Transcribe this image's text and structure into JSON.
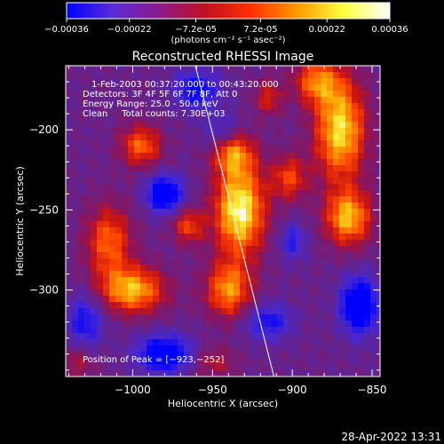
{
  "colorbar": {
    "ticks": [
      "-0.00036",
      "-0.00022",
      "-7.2e-05",
      "7.2e-05",
      "0.00022",
      "0.00036"
    ],
    "unit_label": "(photons cm⁻² s⁻¹ asec⁻²)",
    "colors": [
      "#0000ff",
      "#5a2cd6",
      "#8a1a8a",
      "#c01020",
      "#ff3000",
      "#ff9a00",
      "#ffff40",
      "#ffffff"
    ]
  },
  "chart_data": {
    "type": "heatmap",
    "title": "Reconstructed RHESSI Image",
    "xlabel": "Heliocentric X (arcsec)",
    "ylabel": "Heliocentric Y (arcsec)",
    "xlim": [
      -1042,
      -845
    ],
    "ylim": [
      -354,
      -160
    ],
    "xticks": [
      -1000,
      -950,
      -900,
      -850
    ],
    "yticks": [
      -200,
      -250,
      -300
    ],
    "xtick_labels": [
      "−1000",
      "−950",
      "−900",
      "−850"
    ],
    "ytick_labels": [
      "−200",
      "−250",
      "−300"
    ],
    "zlim": [
      -0.00036,
      0.00036
    ],
    "info_lines": [
      "1-Feb-2003 00:37:20.000 to 00:43:20.000",
      "Detectors: 3F 4F 5F 6F 7F 8F, Att 0",
      "Energy Range: 25.0 - 50.0 keV",
      "Clean     Total counts: 7.30E+03"
    ],
    "peak_label": "Position of Peak = [−923,−252]",
    "peak": [
      -923,
      -252
    ],
    "limb_line": [
      [
        -961,
        -159
      ],
      [
        -911,
        -356
      ]
    ],
    "blobs": [
      {
        "x": -933,
        "y": -250,
        "sx": 11,
        "sy": 20,
        "a": 1.0
      },
      {
        "x": -940,
        "y": -300,
        "sx": 10,
        "sy": 12,
        "a": 0.7
      },
      {
        "x": -937,
        "y": -215,
        "sx": 9,
        "sy": 9,
        "a": 0.6
      },
      {
        "x": -870,
        "y": -200,
        "sx": 11,
        "sy": 22,
        "a": 0.9
      },
      {
        "x": -885,
        "y": -170,
        "sx": 10,
        "sy": 10,
        "a": 0.6
      },
      {
        "x": -865,
        "y": -255,
        "sx": 10,
        "sy": 12,
        "a": 0.8
      },
      {
        "x": -1000,
        "y": -300,
        "sx": 14,
        "sy": 10,
        "a": 0.8
      },
      {
        "x": -995,
        "y": -210,
        "sx": 9,
        "sy": 9,
        "a": 0.6
      },
      {
        "x": -1015,
        "y": -270,
        "sx": 10,
        "sy": 16,
        "a": 0.6
      },
      {
        "x": -965,
        "y": -260,
        "sx": 7,
        "sy": 8,
        "a": 0.5
      },
      {
        "x": -902,
        "y": -230,
        "sx": 8,
        "sy": 10,
        "a": 0.5
      },
      {
        "x": -915,
        "y": -180,
        "sx": 6,
        "sy": 8,
        "a": 0.4
      },
      {
        "x": -950,
        "y": -345,
        "sx": 10,
        "sy": 7,
        "a": 0.3
      },
      {
        "x": -1035,
        "y": -345,
        "sx": 8,
        "sy": 8,
        "a": 0.3
      },
      {
        "x": -980,
        "y": -240,
        "sx": 8,
        "sy": 8,
        "a": -0.8
      },
      {
        "x": -960,
        "y": -175,
        "sx": 10,
        "sy": 8,
        "a": -0.6
      },
      {
        "x": -980,
        "y": -340,
        "sx": 12,
        "sy": 8,
        "a": -0.8
      },
      {
        "x": -1030,
        "y": -320,
        "sx": 8,
        "sy": 12,
        "a": -0.5
      },
      {
        "x": -858,
        "y": -310,
        "sx": 8,
        "sy": 12,
        "a": -0.9
      },
      {
        "x": -915,
        "y": -320,
        "sx": 10,
        "sy": 8,
        "a": -0.5
      },
      {
        "x": -900,
        "y": -270,
        "sx": 6,
        "sy": 8,
        "a": -0.4
      },
      {
        "x": -945,
        "y": -200,
        "sx": 8,
        "sy": 8,
        "a": -0.3
      }
    ]
  },
  "footer": {
    "timestamp": "28-Apr-2022 13:31"
  }
}
